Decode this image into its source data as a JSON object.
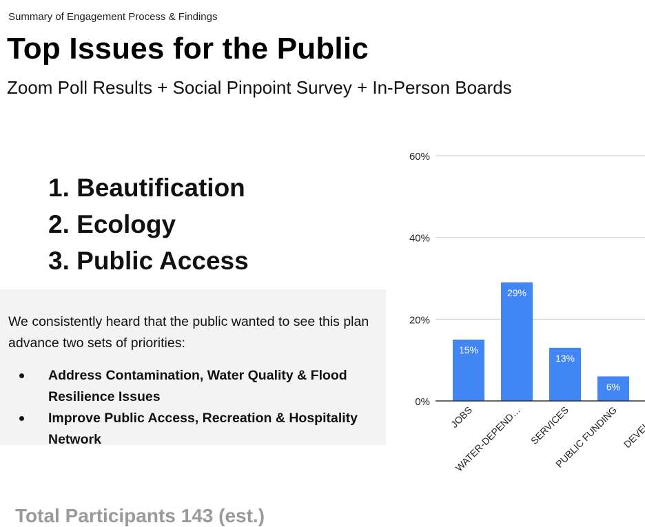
{
  "header": {
    "eyebrow": "Summary of Engagement Process & Findings",
    "title": "Top Issues for the Public",
    "subtitle": "Zoom Poll Results + Social Pinpoint Survey + In-Person Boards"
  },
  "ranked_issues": [
    "1. Beautification",
    "2. Ecology",
    "3. Public Access"
  ],
  "priorities": {
    "intro": "We consistently heard that the public wanted to see this plan advance two sets of priorities:",
    "items": [
      "Address Contamination, Water Quality & Flood Resilience Issues",
      "Improve Public Access, Recreation & Hospitality Network"
    ]
  },
  "footer": {
    "participants": "Total Participants 143 (est.)"
  },
  "chart_data": {
    "type": "bar",
    "categories": [
      "JOBS",
      "WATER-DEPEND…",
      "SERVICES",
      "PUBLIC FUNDING",
      "DEVELOPM"
    ],
    "values": [
      15,
      29,
      13,
      6,
      null
    ],
    "data_labels": [
      "15%",
      "29%",
      "13%",
      "6%",
      ""
    ],
    "yticks": [
      "0%",
      "20%",
      "40%",
      "60%"
    ],
    "ytick_values": [
      0,
      20,
      40,
      60
    ],
    "ylim": [
      0,
      60
    ],
    "grid": true,
    "bar_color": "#4285f4",
    "grid_color": "#cccccc",
    "axis_color": "#333333",
    "title": "",
    "xlabel": "",
    "ylabel": ""
  }
}
